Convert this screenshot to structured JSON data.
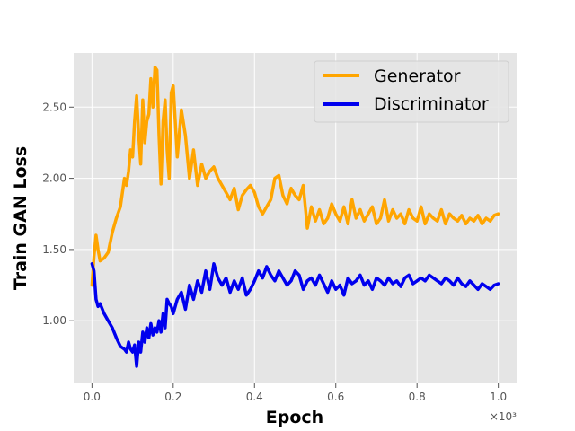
{
  "chart_data": {
    "type": "line",
    "xlabel": "Epoch",
    "ylabel": "Train GAN Loss",
    "x_offset_label": "×10³",
    "xlim": [
      -0.045,
      1.045
    ],
    "ylim": [
      0.56,
      2.88
    ],
    "x_ticks": [
      0.0,
      0.2,
      0.4,
      0.6,
      0.8,
      1.0
    ],
    "x_tick_labels": [
      "0.0",
      "0.2",
      "0.4",
      "0.6",
      "0.8",
      "1.0"
    ],
    "y_ticks": [
      1.0,
      1.5,
      2.0,
      2.5
    ],
    "y_tick_labels": [
      "1.00",
      "1.50",
      "2.00",
      "2.50"
    ],
    "grid": true,
    "legend_position": "top-right",
    "background": "#e5e5e5",
    "series": [
      {
        "name": "Generator",
        "color": "#ffa500",
        "x": [
          0.0,
          0.005,
          0.01,
          0.015,
          0.02,
          0.03,
          0.04,
          0.05,
          0.06,
          0.07,
          0.08,
          0.085,
          0.09,
          0.095,
          0.1,
          0.105,
          0.11,
          0.115,
          0.12,
          0.125,
          0.13,
          0.135,
          0.14,
          0.145,
          0.15,
          0.155,
          0.16,
          0.165,
          0.17,
          0.175,
          0.18,
          0.185,
          0.19,
          0.195,
          0.2,
          0.21,
          0.22,
          0.23,
          0.24,
          0.25,
          0.26,
          0.27,
          0.28,
          0.29,
          0.3,
          0.31,
          0.32,
          0.33,
          0.34,
          0.35,
          0.36,
          0.37,
          0.38,
          0.39,
          0.4,
          0.41,
          0.42,
          0.43,
          0.44,
          0.45,
          0.46,
          0.47,
          0.48,
          0.49,
          0.5,
          0.51,
          0.52,
          0.53,
          0.54,
          0.55,
          0.56,
          0.57,
          0.58,
          0.59,
          0.6,
          0.61,
          0.62,
          0.63,
          0.64,
          0.65,
          0.66,
          0.67,
          0.68,
          0.69,
          0.7,
          0.71,
          0.72,
          0.73,
          0.74,
          0.75,
          0.76,
          0.77,
          0.78,
          0.79,
          0.8,
          0.81,
          0.82,
          0.83,
          0.84,
          0.85,
          0.86,
          0.87,
          0.88,
          0.89,
          0.9,
          0.91,
          0.92,
          0.93,
          0.94,
          0.95,
          0.96,
          0.97,
          0.98,
          0.99,
          1.0
        ],
        "y": [
          1.25,
          1.45,
          1.6,
          1.5,
          1.42,
          1.44,
          1.48,
          1.62,
          1.72,
          1.8,
          2.0,
          1.95,
          2.05,
          2.2,
          2.15,
          2.4,
          2.58,
          2.3,
          2.1,
          2.55,
          2.25,
          2.4,
          2.45,
          2.7,
          2.5,
          2.78,
          2.76,
          2.3,
          1.96,
          2.4,
          2.55,
          2.2,
          2.0,
          2.6,
          2.65,
          2.15,
          2.48,
          2.3,
          2.0,
          2.2,
          1.95,
          2.1,
          2.0,
          2.05,
          2.08,
          2.0,
          1.95,
          1.9,
          1.85,
          1.93,
          1.78,
          1.88,
          1.92,
          1.95,
          1.9,
          1.8,
          1.75,
          1.8,
          1.85,
          2.0,
          2.02,
          1.88,
          1.82,
          1.93,
          1.88,
          1.85,
          1.95,
          1.65,
          1.8,
          1.7,
          1.78,
          1.68,
          1.72,
          1.82,
          1.75,
          1.7,
          1.8,
          1.68,
          1.85,
          1.72,
          1.78,
          1.7,
          1.75,
          1.8,
          1.68,
          1.72,
          1.85,
          1.7,
          1.78,
          1.72,
          1.75,
          1.68,
          1.78,
          1.72,
          1.7,
          1.8,
          1.68,
          1.75,
          1.72,
          1.7,
          1.78,
          1.68,
          1.75,
          1.72,
          1.7,
          1.74,
          1.68,
          1.72,
          1.7,
          1.74,
          1.68,
          1.72,
          1.7,
          1.74,
          1.75
        ]
      },
      {
        "name": "Discriminator",
        "color": "#0000ee",
        "x": [
          0.0,
          0.005,
          0.01,
          0.015,
          0.02,
          0.03,
          0.04,
          0.05,
          0.06,
          0.07,
          0.08,
          0.085,
          0.09,
          0.095,
          0.1,
          0.105,
          0.11,
          0.115,
          0.12,
          0.125,
          0.13,
          0.135,
          0.14,
          0.145,
          0.15,
          0.155,
          0.16,
          0.165,
          0.17,
          0.175,
          0.18,
          0.185,
          0.19,
          0.195,
          0.2,
          0.21,
          0.22,
          0.23,
          0.24,
          0.25,
          0.26,
          0.27,
          0.28,
          0.29,
          0.3,
          0.31,
          0.32,
          0.33,
          0.34,
          0.35,
          0.36,
          0.37,
          0.38,
          0.39,
          0.4,
          0.41,
          0.42,
          0.43,
          0.44,
          0.45,
          0.46,
          0.47,
          0.48,
          0.49,
          0.5,
          0.51,
          0.52,
          0.53,
          0.54,
          0.55,
          0.56,
          0.57,
          0.58,
          0.59,
          0.6,
          0.61,
          0.62,
          0.63,
          0.64,
          0.65,
          0.66,
          0.67,
          0.68,
          0.69,
          0.7,
          0.71,
          0.72,
          0.73,
          0.74,
          0.75,
          0.76,
          0.77,
          0.78,
          0.79,
          0.8,
          0.81,
          0.82,
          0.83,
          0.84,
          0.85,
          0.86,
          0.87,
          0.88,
          0.89,
          0.9,
          0.91,
          0.92,
          0.93,
          0.94,
          0.95,
          0.96,
          0.97,
          0.98,
          0.99,
          1.0
        ],
        "y": [
          1.4,
          1.35,
          1.15,
          1.1,
          1.12,
          1.05,
          1.0,
          0.95,
          0.88,
          0.82,
          0.8,
          0.78,
          0.85,
          0.8,
          0.78,
          0.83,
          0.68,
          0.85,
          0.78,
          0.92,
          0.85,
          0.95,
          0.88,
          0.98,
          0.9,
          0.95,
          0.92,
          1.0,
          0.92,
          1.05,
          0.95,
          1.15,
          1.12,
          1.1,
          1.05,
          1.15,
          1.2,
          1.08,
          1.25,
          1.15,
          1.28,
          1.2,
          1.35,
          1.22,
          1.4,
          1.3,
          1.25,
          1.3,
          1.2,
          1.28,
          1.22,
          1.3,
          1.18,
          1.22,
          1.28,
          1.35,
          1.3,
          1.38,
          1.32,
          1.28,
          1.35,
          1.3,
          1.25,
          1.28,
          1.35,
          1.32,
          1.22,
          1.28,
          1.3,
          1.25,
          1.32,
          1.26,
          1.2,
          1.28,
          1.22,
          1.25,
          1.18,
          1.3,
          1.26,
          1.28,
          1.32,
          1.25,
          1.28,
          1.22,
          1.3,
          1.28,
          1.25,
          1.3,
          1.26,
          1.28,
          1.24,
          1.3,
          1.32,
          1.26,
          1.28,
          1.3,
          1.28,
          1.32,
          1.3,
          1.28,
          1.26,
          1.3,
          1.28,
          1.25,
          1.3,
          1.26,
          1.24,
          1.28,
          1.25,
          1.22,
          1.26,
          1.24,
          1.22,
          1.25,
          1.26
        ]
      }
    ]
  }
}
